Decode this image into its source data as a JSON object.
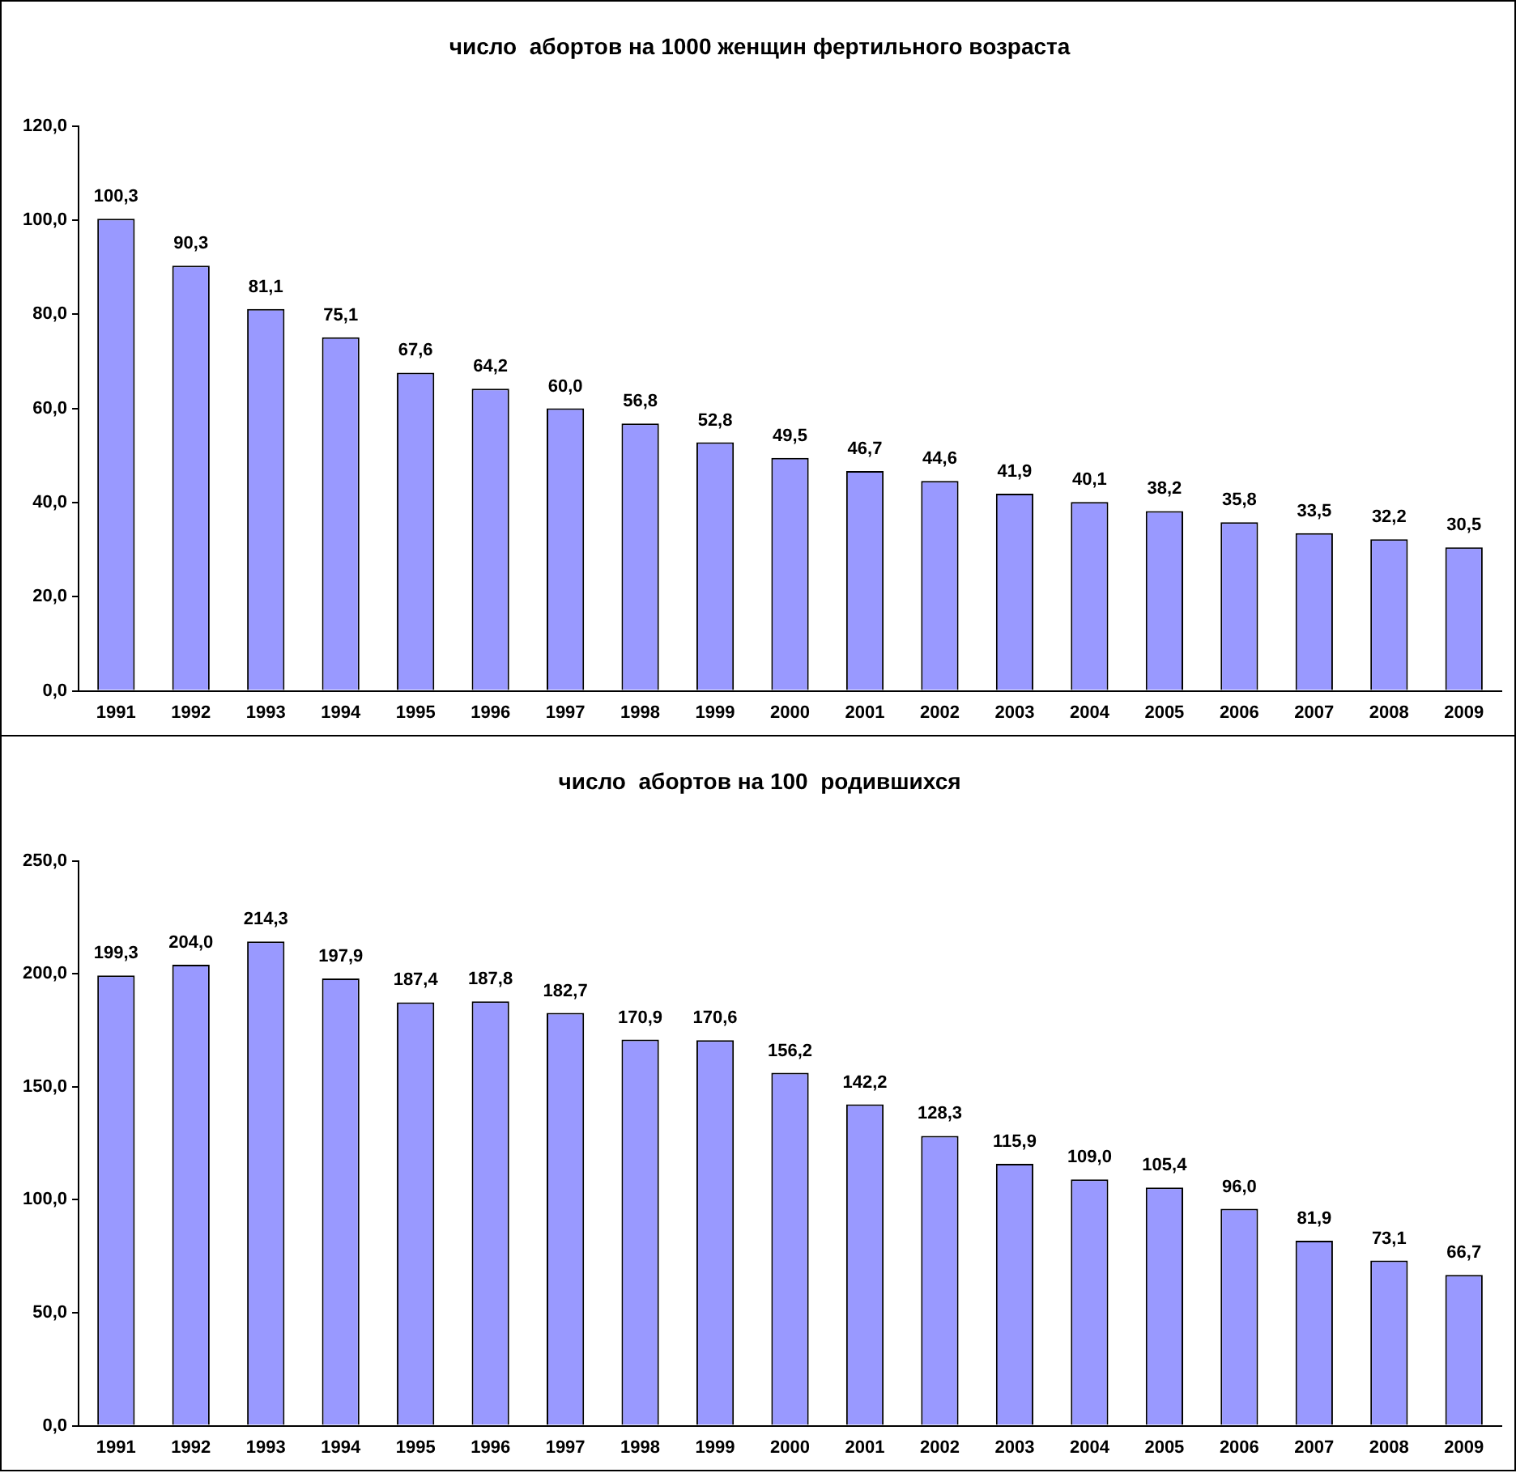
{
  "chart_data": [
    {
      "type": "bar",
      "title": "число  абортов на 1000 женщин фертильного возраста",
      "categories": [
        "1991",
        "1992",
        "1993",
        "1994",
        "1995",
        "1996",
        "1997",
        "1998",
        "1999",
        "2000",
        "2001",
        "2002",
        "2003",
        "2004",
        "2005",
        "2006",
        "2007",
        "2008",
        "2009"
      ],
      "values": [
        100.3,
        90.3,
        81.1,
        75.1,
        67.6,
        64.2,
        60.0,
        56.8,
        52.8,
        49.5,
        46.7,
        44.6,
        41.9,
        40.1,
        38.2,
        35.8,
        33.5,
        32.2,
        30.5
      ],
      "value_labels": [
        "100,3",
        "90,3",
        "81,1",
        "75,1",
        "67,6",
        "64,2",
        "60,0",
        "56,8",
        "52,8",
        "49,5",
        "46,7",
        "44,6",
        "41,9",
        "40,1",
        "38,2",
        "35,8",
        "33,5",
        "32,2",
        "30,5"
      ],
      "color": "#9999ff",
      "ylim": [
        0,
        120
      ],
      "yticks": [
        {
          "value": 0,
          "label": "0,0"
        },
        {
          "value": 20,
          "label": "20,0"
        },
        {
          "value": 40,
          "label": "40,0"
        },
        {
          "value": 60,
          "label": "60,0"
        },
        {
          "value": 80,
          "label": "80,0"
        },
        {
          "value": 100,
          "label": "100,0"
        },
        {
          "value": 120,
          "label": "120,0"
        }
      ],
      "grid": false,
      "legend": false
    },
    {
      "type": "bar",
      "title": "число  абортов на 100  родившихся",
      "categories": [
        "1991",
        "1992",
        "1993",
        "1994",
        "1995",
        "1996",
        "1997",
        "1998",
        "1999",
        "2000",
        "2001",
        "2002",
        "2003",
        "2004",
        "2005",
        "2006",
        "2007",
        "2008",
        "2009"
      ],
      "values": [
        199.3,
        204.0,
        214.3,
        197.9,
        187.4,
        187.8,
        182.7,
        170.9,
        170.6,
        156.2,
        142.2,
        128.3,
        115.9,
        109.0,
        105.4,
        96.0,
        81.9,
        73.1,
        66.7
      ],
      "value_labels": [
        "199,3",
        "204,0",
        "214,3",
        "197,9",
        "187,4",
        "187,8",
        "182,7",
        "170,9",
        "170,6",
        "156,2",
        "142,2",
        "128,3",
        "115,9",
        "109,0",
        "105,4",
        "96,0",
        "81,9",
        "73,1",
        "66,7"
      ],
      "color": "#9999ff",
      "ylim": [
        0,
        250
      ],
      "yticks": [
        {
          "value": 0,
          "label": "0,0"
        },
        {
          "value": 50,
          "label": "50,0"
        },
        {
          "value": 100,
          "label": "100,0"
        },
        {
          "value": 150,
          "label": "150,0"
        },
        {
          "value": 200,
          "label": "200,0"
        },
        {
          "value": 250,
          "label": "250,0"
        }
      ],
      "grid": false,
      "legend": false
    }
  ]
}
